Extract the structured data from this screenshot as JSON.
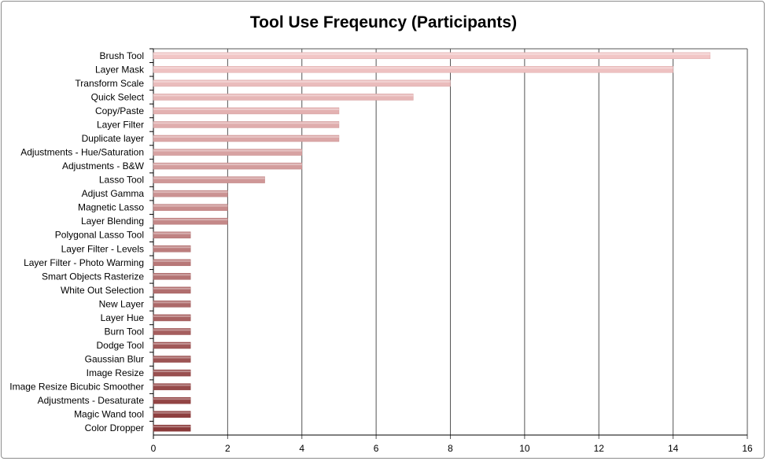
{
  "chart_data": {
    "type": "bar",
    "orientation": "horizontal",
    "title": "Tool Use Freqeuncy (Participants)",
    "xlabel": "",
    "ylabel": "",
    "xlim": [
      0,
      16
    ],
    "xticks": [
      "0",
      "2",
      "4",
      "6",
      "8",
      "10",
      "12",
      "14",
      "16"
    ],
    "grid": "vertical",
    "legend": "none",
    "bar_color_top": "#f2c6c6",
    "bar_color_bottom": "#8a3a3a",
    "categories": [
      "Brush Tool",
      "Layer Mask",
      "Transform Scale",
      "Quick Select",
      "Copy/Paste",
      "Layer Filter",
      "Duplicate layer",
      "Adjustments - Hue/Saturation",
      "Adjustments - B&W",
      "Lasso Tool",
      "Adjust Gamma",
      "Magnetic Lasso",
      "Layer Blending",
      "Polygonal Lasso Tool",
      "Layer Filter - Levels",
      "Layer Filter - Photo Warming",
      "Smart Objects Rasterize",
      "White Out Selection",
      "New Layer",
      "Layer Hue",
      "Burn Tool",
      "Dodge Tool",
      "Gaussian Blur",
      "Image Resize",
      "Image Resize Bicubic Smoother",
      "Adjustments - Desaturate",
      "Magic Wand tool",
      "Color Dropper"
    ],
    "values": [
      15,
      14,
      8,
      7,
      5,
      5,
      5,
      4,
      4,
      3,
      2,
      2,
      2,
      1,
      1,
      1,
      1,
      1,
      1,
      1,
      1,
      1,
      1,
      1,
      1,
      1,
      1,
      1
    ]
  }
}
